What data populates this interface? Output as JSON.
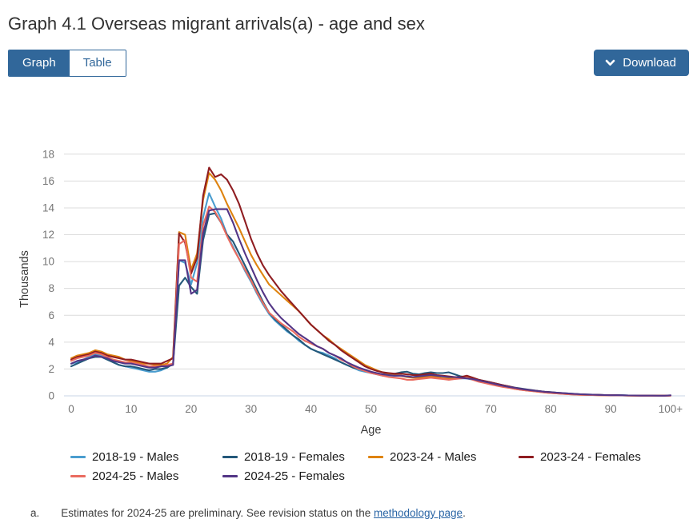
{
  "page": {
    "title": "Graph 4.1 Overseas migrant arrivals(a) - age and sex"
  },
  "toolbar": {
    "graph_label": "Graph",
    "table_label": "Table",
    "download_label": "Download",
    "download_icon": "chevron-down-icon"
  },
  "colors": {
    "accent": "#31679A",
    "grid": "#dcdcdc",
    "baseline": "#c9d6e6",
    "tick_text": "#757575",
    "axis_title_text": "#3a3a3a",
    "link": "#2a65a5"
  },
  "chart_data": {
    "type": "line",
    "title": "",
    "xlabel": "Age",
    "ylabel": "Thousands",
    "xlim": [
      0,
      100
    ],
    "ylim": [
      0,
      18
    ],
    "grid": "horizontal",
    "legend_position": "bottom",
    "x_note": "x value = age in years; values[i] is at age i; last category is 100+",
    "x_ticks": [
      "0",
      "10",
      "20",
      "30",
      "40",
      "50",
      "60",
      "70",
      "80",
      "90",
      "100+"
    ],
    "y_ticks": [
      "0",
      "2",
      "4",
      "6",
      "8",
      "10",
      "12",
      "14",
      "16",
      "18"
    ],
    "series": [
      {
        "name": "2018-19 - Males",
        "color": "#4A9DCF",
        "values": [
          2.4,
          2.5,
          2.7,
          2.9,
          3.1,
          3.0,
          2.8,
          2.5,
          2.3,
          2.2,
          2.1,
          2.0,
          1.9,
          1.8,
          1.8,
          1.9,
          2.1,
          2.4,
          10.1,
          9.9,
          8.3,
          9.9,
          13.3,
          15.1,
          14.1,
          13.2,
          12.0,
          11.1,
          10.2,
          9.3,
          8.5,
          7.6,
          6.8,
          6.1,
          5.6,
          5.2,
          4.8,
          4.5,
          4.1,
          3.8,
          3.5,
          3.3,
          3.2,
          3.0,
          2.8,
          2.5,
          2.3,
          2.1,
          1.9,
          1.8,
          1.7,
          1.6,
          1.5,
          1.5,
          1.5,
          1.5,
          1.45,
          1.4,
          1.45,
          1.5,
          1.55,
          1.5,
          1.45,
          1.4,
          1.35,
          1.3,
          1.3,
          1.2,
          1.1,
          1.0,
          0.9,
          0.8,
          0.72,
          0.65,
          0.58,
          0.5,
          0.45,
          0.4,
          0.35,
          0.3,
          0.26,
          0.22,
          0.18,
          0.15,
          0.13,
          0.11,
          0.09,
          0.08,
          0.07,
          0.06,
          0.05,
          0.04,
          0.04,
          0.03,
          0.03,
          0.02,
          0.02,
          0.02,
          0.01,
          0.01,
          0.03
        ]
      },
      {
        "name": "2018-19 - Females",
        "color": "#24587A",
        "values": [
          2.2,
          2.4,
          2.6,
          2.8,
          2.9,
          2.9,
          2.7,
          2.5,
          2.3,
          2.2,
          2.2,
          2.1,
          2.0,
          1.9,
          2.0,
          2.0,
          2.1,
          2.4,
          8.2,
          8.8,
          8.1,
          7.6,
          11.6,
          13.5,
          13.6,
          12.9,
          12.0,
          11.5,
          10.6,
          9.7,
          8.8,
          7.9,
          7.0,
          6.2,
          5.7,
          5.3,
          4.9,
          4.5,
          4.2,
          3.8,
          3.5,
          3.3,
          3.1,
          2.9,
          2.7,
          2.5,
          2.3,
          2.1,
          2.0,
          1.85,
          1.75,
          1.65,
          1.6,
          1.6,
          1.65,
          1.75,
          1.8,
          1.65,
          1.6,
          1.7,
          1.75,
          1.7,
          1.7,
          1.75,
          1.6,
          1.45,
          1.4,
          1.3,
          1.2,
          1.1,
          1.0,
          0.9,
          0.8,
          0.7,
          0.62,
          0.55,
          0.48,
          0.42,
          0.36,
          0.31,
          0.28,
          0.24,
          0.2,
          0.17,
          0.14,
          0.12,
          0.1,
          0.09,
          0.07,
          0.06,
          0.05,
          0.05,
          0.04,
          0.03,
          0.03,
          0.02,
          0.02,
          0.02,
          0.01,
          0.01,
          0.03
        ]
      },
      {
        "name": "2023-24 - Males",
        "color": "#DE830F",
        "values": [
          2.8,
          3.0,
          3.1,
          3.2,
          3.4,
          3.3,
          3.1,
          3.0,
          2.9,
          2.7,
          2.6,
          2.5,
          2.4,
          2.4,
          2.3,
          2.3,
          2.4,
          2.9,
          12.2,
          12.0,
          9.4,
          10.6,
          14.6,
          16.6,
          16.1,
          15.3,
          14.3,
          13.4,
          12.5,
          11.5,
          10.5,
          9.7,
          9.0,
          8.3,
          7.9,
          7.5,
          7.1,
          6.7,
          6.3,
          5.8,
          5.3,
          4.9,
          4.5,
          4.2,
          3.8,
          3.5,
          3.2,
          2.9,
          2.6,
          2.3,
          2.1,
          1.9,
          1.75,
          1.65,
          1.55,
          1.5,
          1.4,
          1.35,
          1.35,
          1.4,
          1.45,
          1.4,
          1.3,
          1.3,
          1.3,
          1.35,
          1.4,
          1.25,
          1.1,
          1.0,
          0.9,
          0.8,
          0.7,
          0.6,
          0.52,
          0.46,
          0.4,
          0.35,
          0.3,
          0.25,
          0.21,
          0.18,
          0.15,
          0.12,
          0.1,
          0.08,
          0.07,
          0.06,
          0.05,
          0.04,
          0.04,
          0.03,
          0.03,
          0.02,
          0.02,
          0.02,
          0.01,
          0.01,
          0.01,
          0.01,
          0.02
        ]
      },
      {
        "name": "2023-24 - Females",
        "color": "#8F1D21",
        "values": [
          2.7,
          2.9,
          3.0,
          3.1,
          3.3,
          3.2,
          3.0,
          2.9,
          2.8,
          2.7,
          2.7,
          2.6,
          2.5,
          2.4,
          2.4,
          2.4,
          2.6,
          2.8,
          12.1,
          11.4,
          9.1,
          10.3,
          14.9,
          17.0,
          16.3,
          16.5,
          16.1,
          15.3,
          14.3,
          13.0,
          11.7,
          10.6,
          9.7,
          9.0,
          8.4,
          7.8,
          7.3,
          6.8,
          6.3,
          5.8,
          5.3,
          4.9,
          4.5,
          4.1,
          3.8,
          3.4,
          3.1,
          2.8,
          2.5,
          2.2,
          2.0,
          1.85,
          1.75,
          1.7,
          1.65,
          1.65,
          1.6,
          1.55,
          1.55,
          1.6,
          1.65,
          1.55,
          1.5,
          1.45,
          1.4,
          1.4,
          1.5,
          1.35,
          1.2,
          1.1,
          1.0,
          0.9,
          0.8,
          0.7,
          0.6,
          0.52,
          0.46,
          0.4,
          0.35,
          0.3,
          0.26,
          0.22,
          0.18,
          0.15,
          0.13,
          0.11,
          0.09,
          0.08,
          0.07,
          0.06,
          0.05,
          0.04,
          0.03,
          0.03,
          0.02,
          0.02,
          0.02,
          0.01,
          0.01,
          0.01,
          0.03
        ]
      },
      {
        "name": "2024-25 - Males",
        "color": "#EA6B5F",
        "values": [
          2.6,
          2.8,
          2.9,
          3.0,
          3.2,
          3.1,
          2.9,
          2.7,
          2.6,
          2.5,
          2.5,
          2.4,
          2.3,
          2.2,
          2.2,
          2.2,
          2.3,
          2.4,
          11.3,
          11.6,
          8.8,
          8.5,
          12.7,
          14.1,
          13.7,
          12.9,
          11.9,
          11.0,
          10.2,
          9.4,
          8.6,
          7.7,
          6.9,
          6.2,
          5.8,
          5.4,
          5.1,
          4.8,
          4.4,
          4.1,
          3.9,
          3.7,
          3.5,
          3.2,
          3.0,
          2.7,
          2.5,
          2.2,
          2.0,
          1.85,
          1.7,
          1.6,
          1.5,
          1.4,
          1.35,
          1.3,
          1.2,
          1.2,
          1.25,
          1.3,
          1.35,
          1.3,
          1.25,
          1.2,
          1.25,
          1.3,
          1.35,
          1.2,
          1.05,
          0.95,
          0.85,
          0.75,
          0.67,
          0.6,
          0.52,
          0.45,
          0.4,
          0.35,
          0.3,
          0.25,
          0.21,
          0.18,
          0.15,
          0.12,
          0.1,
          0.08,
          0.07,
          0.06,
          0.05,
          0.04,
          0.04,
          0.03,
          0.03,
          0.02,
          0.02,
          0.01,
          0.01,
          0.01,
          0.01,
          0.01,
          0.02
        ]
      },
      {
        "name": "2024-25 - Females",
        "color": "#533586",
        "values": [
          2.4,
          2.6,
          2.7,
          2.8,
          3.0,
          2.9,
          2.8,
          2.6,
          2.5,
          2.4,
          2.4,
          2.3,
          2.2,
          2.1,
          2.1,
          2.2,
          2.2,
          2.3,
          10.1,
          10.1,
          7.6,
          7.9,
          12.1,
          13.8,
          13.9,
          13.9,
          13.9,
          12.9,
          11.7,
          10.6,
          9.6,
          8.6,
          7.7,
          6.9,
          6.3,
          5.8,
          5.4,
          5.0,
          4.6,
          4.3,
          4.0,
          3.7,
          3.5,
          3.2,
          3.0,
          2.8,
          2.5,
          2.3,
          2.1,
          1.95,
          1.8,
          1.7,
          1.6,
          1.55,
          1.5,
          1.5,
          1.45,
          1.4,
          1.45,
          1.5,
          1.55,
          1.5,
          1.45,
          1.4,
          1.4,
          1.35,
          1.3,
          1.25,
          1.15,
          1.05,
          0.95,
          0.85,
          0.75,
          0.67,
          0.6,
          0.52,
          0.46,
          0.4,
          0.35,
          0.3,
          0.27,
          0.23,
          0.2,
          0.17,
          0.14,
          0.12,
          0.1,
          0.09,
          0.07,
          0.06,
          0.05,
          0.05,
          0.04,
          0.03,
          0.03,
          0.02,
          0.02,
          0.02,
          0.01,
          0.01,
          0.04
        ]
      }
    ]
  },
  "footnote": {
    "marker": "a.",
    "text": "Estimates for 2024-25 are preliminary. See revision status on the ",
    "link_text": "methodology page",
    "after": "."
  }
}
